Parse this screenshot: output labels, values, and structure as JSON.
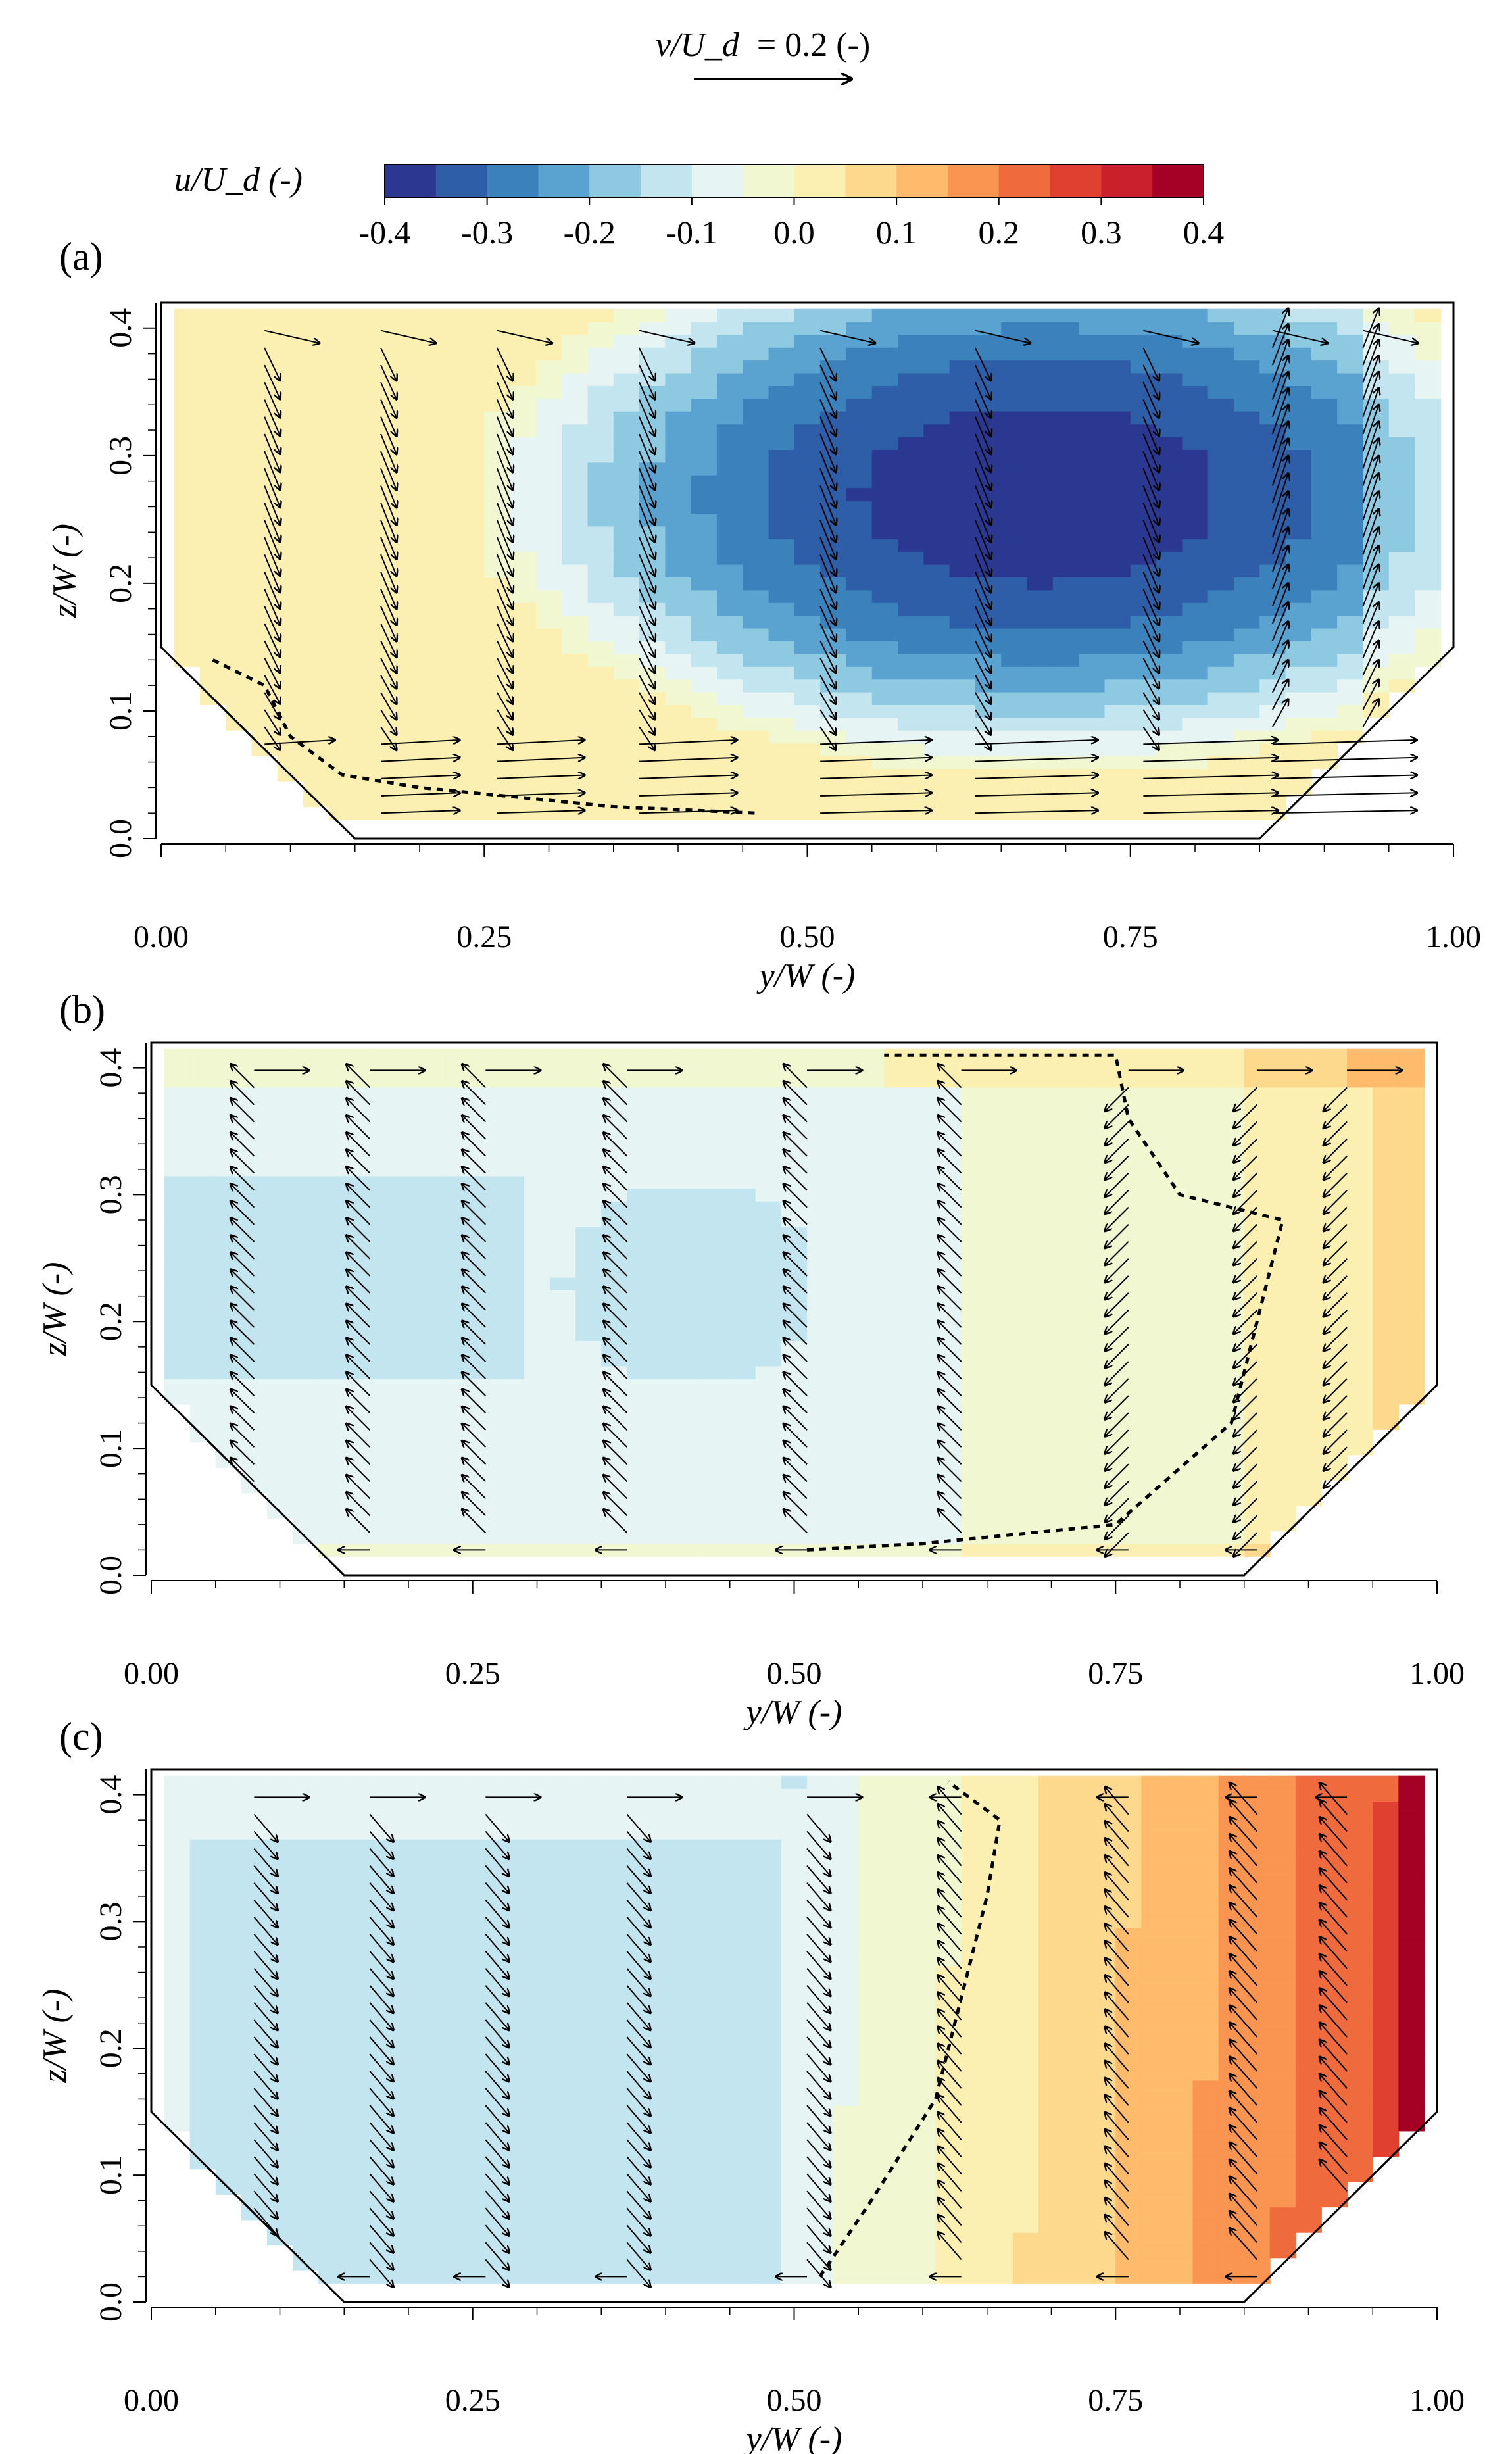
{
  "vector_scale": {
    "label": "v/U_d",
    "value_text": "= 0.2 (-)"
  },
  "colorbar": {
    "label": "u/U_d (-)",
    "tick_labels": [
      "-0.4",
      "-0.3",
      "-0.2",
      "-0.1",
      "0.0",
      "0.1",
      "0.2",
      "0.3",
      "0.4"
    ],
    "range": [
      -0.4,
      0.4
    ],
    "step": 0.05,
    "colors": [
      "#2b3891",
      "#2e5ea7",
      "#3b82bd",
      "#5aa3d0",
      "#8ec9e2",
      "#c3e5f0",
      "#e6f4f4",
      "#f0f7d1",
      "#fbf0b1",
      "#fdd98e",
      "#fdbb6b",
      "#f99550",
      "#ef6a3d",
      "#e04030",
      "#c9202c",
      "#a50026"
    ]
  },
  "panels": [
    {
      "id": "a",
      "tag": "(a)"
    },
    {
      "id": "b",
      "tag": "(b)"
    },
    {
      "id": "c",
      "tag": "(c)"
    }
  ],
  "axes": {
    "xlabel": "y/W (-)",
    "ylabel": "z/W (-)",
    "xtick_labels": [
      "0.00",
      "0.25",
      "0.50",
      "0.75",
      "1.00"
    ],
    "ytick_labels": [
      "0.0",
      "0.1",
      "0.2",
      "0.3",
      "0.4"
    ]
  },
  "chart_data": [
    {
      "panel": "(a)",
      "type": "heatmap",
      "description_field": "u/U_d",
      "xlim": [
        0,
        1
      ],
      "ylim": [
        0,
        0.42
      ],
      "cross_section": [
        [
          0,
          0.15
        ],
        [
          0.15,
          0
        ],
        [
          0.85,
          0
        ],
        [
          1,
          0.15
        ],
        [
          1,
          0.42
        ],
        [
          0,
          0.42
        ]
      ],
      "core": {
        "y": 0.68,
        "z": 0.27,
        "value": -0.38
      },
      "secondary_flow": "wall-jet toward right along the bottom, return flow upward along the right wall",
      "zero_contour": [
        [
          0.04,
          0.14
        ],
        [
          0.08,
          0.12
        ],
        [
          0.1,
          0.08
        ],
        [
          0.14,
          0.05
        ],
        [
          0.2,
          0.04
        ],
        [
          0.35,
          0.025
        ],
        [
          0.46,
          0.02
        ]
      ]
    },
    {
      "panel": "(b)",
      "type": "heatmap",
      "description_field": "u/U_d",
      "xlim": [
        0,
        1
      ],
      "ylim": [
        0,
        0.42
      ],
      "cross_section": [
        [
          0,
          0.15
        ],
        [
          0.15,
          0
        ],
        [
          0.85,
          0
        ],
        [
          1,
          0.15
        ],
        [
          1,
          0.42
        ],
        [
          0,
          0.42
        ]
      ],
      "range_observed": [
        -0.15,
        0.1
      ],
      "secondary_flow": "weak upward flow at left, downward flow near right wall",
      "zero_contour": [
        [
          0.51,
          0.02
        ],
        [
          0.6,
          0.025
        ],
        [
          0.75,
          0.04
        ],
        [
          0.84,
          0.12
        ],
        [
          0.86,
          0.2
        ],
        [
          0.88,
          0.28
        ],
        [
          0.8,
          0.3
        ],
        [
          0.76,
          0.36
        ],
        [
          0.75,
          0.41
        ],
        [
          0.57,
          0.41
        ]
      ]
    },
    {
      "panel": "(c)",
      "type": "heatmap",
      "description_field": "u/U_d",
      "xlim": [
        0,
        1
      ],
      "ylim": [
        0,
        0.42
      ],
      "cross_section": [
        [
          0,
          0.15
        ],
        [
          0.15,
          0
        ],
        [
          0.85,
          0
        ],
        [
          1,
          0.15
        ],
        [
          1,
          0.42
        ],
        [
          0,
          0.42
        ]
      ],
      "range_observed": [
        -0.15,
        0.4
      ],
      "secondary_flow": "downward along left side, upward along right side",
      "zero_contour": [
        [
          0.52,
          0.02
        ],
        [
          0.56,
          0.08
        ],
        [
          0.61,
          0.16
        ],
        [
          0.63,
          0.24
        ],
        [
          0.65,
          0.32
        ],
        [
          0.66,
          0.38
        ],
        [
          0.62,
          0.41
        ]
      ]
    }
  ]
}
